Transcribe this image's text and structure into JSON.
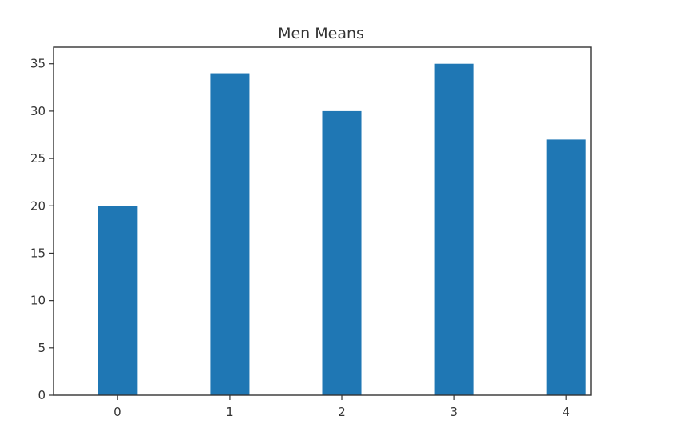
{
  "chart_data": {
    "type": "bar",
    "title": "Men Means",
    "xlabel": "",
    "ylabel": "",
    "categories": [
      "0",
      "1",
      "2",
      "3",
      "4"
    ],
    "x": [
      0,
      1,
      2,
      3,
      4
    ],
    "values": [
      20,
      34,
      30,
      35,
      27
    ],
    "xlim": [
      -0.57,
      4.22
    ],
    "ylim": [
      0,
      36.75
    ],
    "yticks": [
      0,
      5,
      10,
      15,
      20,
      25,
      30,
      35
    ],
    "xticks": [
      0,
      1,
      2,
      3,
      4
    ],
    "bar_width": 0.35,
    "bar_color": "#1f77b4",
    "grid": false,
    "legend": "none"
  }
}
